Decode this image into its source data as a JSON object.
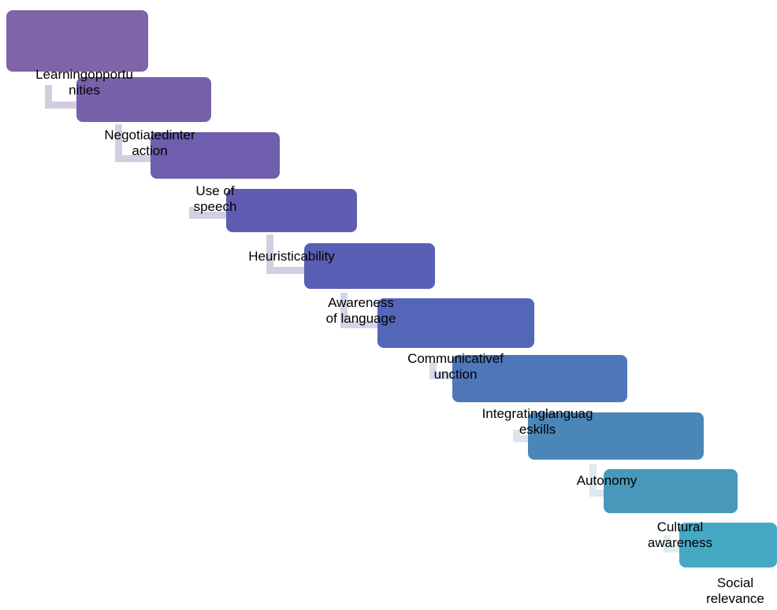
{
  "steps": [
    {
      "label": "Learningopportu\nnities",
      "color": "#7f64a8",
      "connector_color": "#d3cce0"
    },
    {
      "label": "Negotiatedinter\naction",
      "color": "#7761aa",
      "connector_color": "#d3cfe2"
    },
    {
      "label": "Use of\nspeech",
      "color": "#6e5ead",
      "connector_color": "#d2cfe4"
    },
    {
      "label": "Heuristicability",
      "color": "#605cb1",
      "connector_color": "#d1cfe4"
    },
    {
      "label": "Awareness\nof language",
      "color": "#595fb4",
      "connector_color": "#d3d5e7"
    },
    {
      "label": "Communicativef\nunction",
      "color": "#5466b7",
      "connector_color": "#d6dcec"
    },
    {
      "label": "Integratinglanguag\neskills",
      "color": "#4f76b8",
      "connector_color": "#dce4ef"
    },
    {
      "label": "Autonomy",
      "color": "#4b86b9",
      "connector_color": "#dde8f0"
    },
    {
      "label": "Cultural\nawareness",
      "color": "#4898bc",
      "connector_color": "#ddeef3"
    },
    {
      "label": "Social\nrelevance",
      "color": "#46a9c4",
      "connector_color": null
    }
  ]
}
